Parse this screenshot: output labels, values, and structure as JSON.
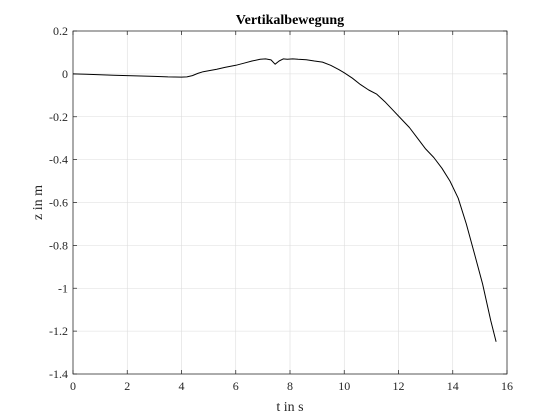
{
  "chart_data": {
    "type": "line",
    "title": "Vertikalbewegung",
    "xlabel": "t in s",
    "ylabel": "z in m",
    "xlim": [
      0,
      16
    ],
    "ylim": [
      -1.4,
      0.2
    ],
    "grid": true,
    "x_ticks": [
      0,
      2,
      4,
      6,
      8,
      10,
      12,
      14,
      16
    ],
    "x_tick_labels": [
      "0",
      "2",
      "4",
      "6",
      "8",
      "10",
      "12",
      "14",
      "16"
    ],
    "y_ticks": [
      0.2,
      0,
      -0.2,
      -0.4,
      -0.6,
      -0.8,
      -1,
      -1.2,
      -1.4
    ],
    "y_tick_labels": [
      "0.2",
      "0",
      "-0.2",
      "-0.4",
      "-0.6",
      "-0.8",
      "-1",
      "-1.2",
      "-1.4"
    ],
    "series": [
      {
        "color": "#000000",
        "x": [
          0,
          0.5,
          1,
          1.5,
          2,
          2.5,
          3,
          3.5,
          4,
          4.2,
          4.4,
          4.6,
          4.8,
          5,
          5.3,
          5.6,
          6,
          6.3,
          6.6,
          6.9,
          7.1,
          7.3,
          7.45,
          7.6,
          7.75,
          7.9,
          8.1,
          8.3,
          8.6,
          8.9,
          9.2,
          9.5,
          9.8,
          10,
          10.3,
          10.6,
          10.9,
          11.2,
          11.5,
          11.8,
          12.1,
          12.4,
          12.7,
          13,
          13.3,
          13.6,
          13.9,
          14.2,
          14.5,
          14.8,
          15.1,
          15.4,
          15.6
        ],
        "y": [
          0,
          -0.002,
          -0.004,
          -0.006,
          -0.008,
          -0.01,
          -0.012,
          -0.014,
          -0.015,
          -0.014,
          -0.008,
          0.002,
          0.01,
          0.015,
          0.022,
          0.03,
          0.04,
          0.05,
          0.06,
          0.068,
          0.07,
          0.065,
          0.045,
          0.06,
          0.07,
          0.068,
          0.07,
          0.068,
          0.066,
          0.06,
          0.055,
          0.04,
          0.02,
          0.005,
          -0.02,
          -0.05,
          -0.075,
          -0.095,
          -0.13,
          -0.17,
          -0.21,
          -0.25,
          -0.3,
          -0.35,
          -0.39,
          -0.44,
          -0.5,
          -0.58,
          -0.7,
          -0.84,
          -0.98,
          -1.15,
          -1.25
        ]
      }
    ]
  }
}
